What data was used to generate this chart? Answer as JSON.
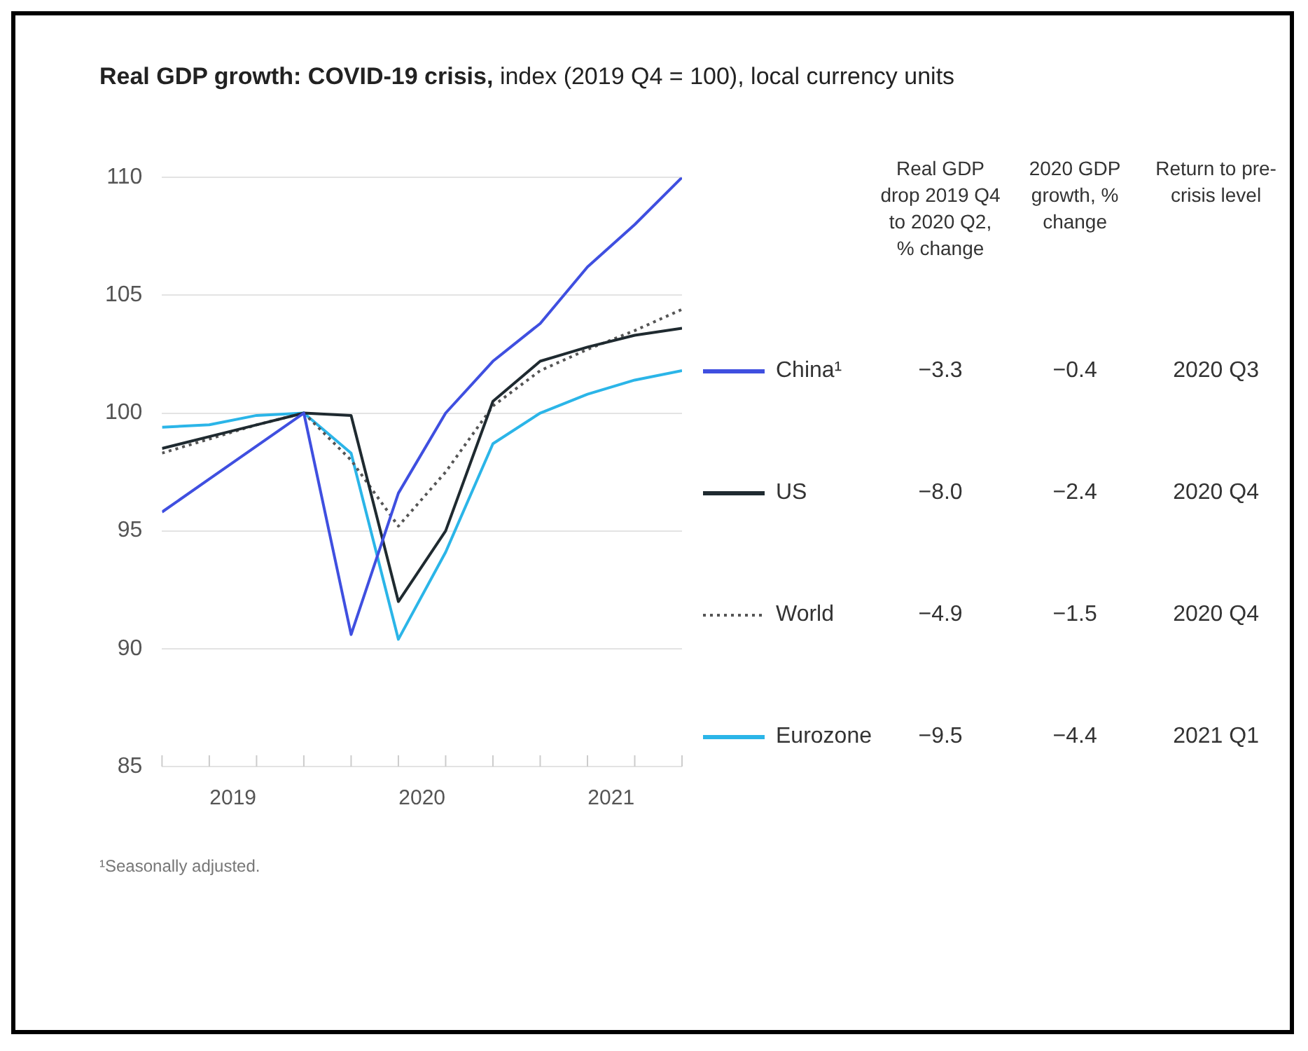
{
  "chart_data": {
    "type": "line",
    "title": "Real GDP growth: COVID-19 crisis,",
    "subtitle": "index (2019 Q4 = 100), local currency units",
    "x": [
      2019,
      2019.25,
      2019.5,
      2019.75,
      2020,
      2020.25,
      2020.5,
      2020.75,
      2021,
      2021.25,
      2021.5,
      2021.75
    ],
    "xlim": [
      2019,
      2021.75
    ],
    "xticks": [
      {
        "value": 2019,
        "label": null
      },
      {
        "value": 2019.25,
        "label": null
      },
      {
        "value": 2019.375,
        "label": "2019"
      },
      {
        "value": 2019.5,
        "label": null
      },
      {
        "value": 2019.75,
        "label": null
      },
      {
        "value": 2020,
        "label": null
      },
      {
        "value": 2020.25,
        "label": null
      },
      {
        "value": 2020.375,
        "label": "2020"
      },
      {
        "value": 2020.5,
        "label": null
      },
      {
        "value": 2020.75,
        "label": null
      },
      {
        "value": 2021,
        "label": null
      },
      {
        "value": 2021.25,
        "label": null
      },
      {
        "value": 2021.375,
        "label": "2021"
      },
      {
        "value": 2021.5,
        "label": null
      },
      {
        "value": 2021.75,
        "label": null
      }
    ],
    "ylim": [
      85,
      110
    ],
    "yticks": [
      85,
      90,
      95,
      100,
      105,
      110
    ],
    "grid": "y",
    "legend": "right",
    "marker": "none",
    "series": [
      {
        "name": "China¹",
        "color": "#3f4fe0",
        "values": [
          95.8,
          97.2,
          98.6,
          100,
          90.6,
          96.6,
          100,
          102.2,
          103.8,
          106.2,
          108,
          110
        ]
      },
      {
        "name": "US",
        "color": "#1f2a30",
        "values": [
          98.5,
          99,
          99.5,
          100,
          99.9,
          92,
          95,
          100.5,
          102.2,
          102.8,
          103.3,
          103.6
        ]
      },
      {
        "name": "World",
        "color": "#555555",
        "line_style": "dotted",
        "values": [
          98.3,
          98.9,
          99.5,
          100,
          98,
          95.2,
          97.5,
          100.3,
          101.8,
          102.7,
          103.5,
          104.4
        ]
      },
      {
        "name": "Eurozone",
        "color": "#2bb5e8",
        "values": [
          99.4,
          99.5,
          99.9,
          100,
          98.3,
          90.4,
          94.1,
          98.7,
          100,
          100.8,
          101.4,
          101.8
        ]
      }
    ],
    "annotations": [
      "¹Seasonally adjusted.",
      "Real GDP drop 2019 Q4 to 2020 Q2, % change",
      "2020 GDP growth, % change",
      "Return to pre-crisis level",
      "−3.3",
      "−0.4",
      "2020 Q3",
      "−8.0",
      "−2.4",
      "2020 Q4",
      "−4.9",
      "−1.5",
      "2020 Q4",
      "−9.5",
      "−4.4",
      "2021 Q1"
    ]
  }
}
